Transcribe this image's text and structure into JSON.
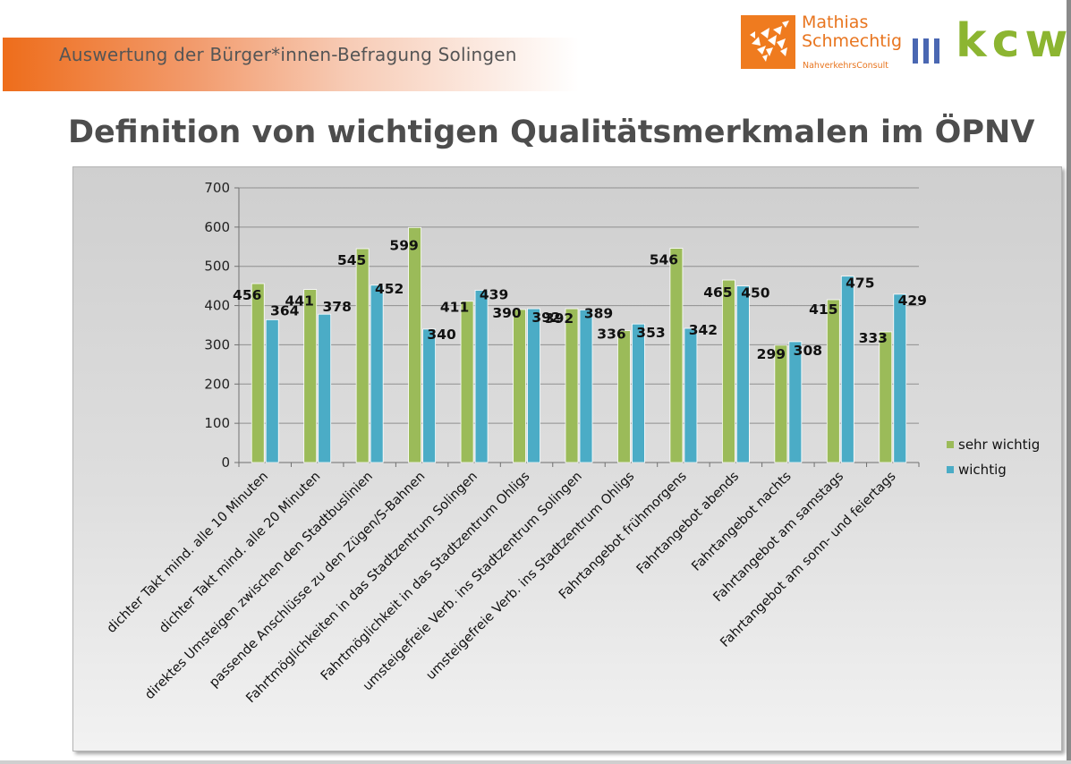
{
  "header": {
    "subtitle": "Auswertung der Bürger*innen-Befragung Solingen"
  },
  "logos": {
    "mathias_line1": "Mathias",
    "mathias_line2": "Schmechtig",
    "mathias_sub": "NahverkehrsConsult",
    "kcw": "kcw"
  },
  "page": {
    "title": "Definition von wichtigen Qualitätsmerkmalen im ÖPNV"
  },
  "colors": {
    "brand_orange": "#ee6d1b",
    "kcw_green": "#8cb531",
    "kcw_blue": "#4a67b2"
  },
  "chart_data": {
    "type": "bar",
    "title": "",
    "xlabel": "",
    "ylabel": "",
    "ylim": [
      0,
      700
    ],
    "yticks": [
      0,
      100,
      200,
      300,
      400,
      500,
      600,
      700
    ],
    "grid": true,
    "legend_position": "right",
    "categories": [
      "dichter Takt mind. alle 10 Minuten",
      "dichter Takt mind. alle 20 Minuten",
      "direktes Umsteigen zwischen den Stadtbuslinien",
      "passende Anschlüsse zu den Zügen/S-Bahnen",
      "Fahrtmöglichkeiten in das Stadtzentrum Solingen",
      "Fahrtmöglichkeit in das Stadtzentrum Ohligs",
      "umsteigefreie Verb. ins Stadtzentrum Solingen",
      "umsteigefreie Verb. ins Stadtzentrum Ohligs",
      "Fahrtangebot frühmorgens",
      "Fahrtangebot abends",
      "Fahrtangebot nachts",
      "Fahrtangebot am samstags",
      "Fahrtangebot am sonn- und feiertags"
    ],
    "series": [
      {
        "name": "sehr wichtig",
        "color": "#9bbb59",
        "values": [
          456,
          441,
          545,
          599,
          411,
          390,
          392,
          336,
          546,
          465,
          299,
          415,
          333
        ]
      },
      {
        "name": "wichtig",
        "color": "#4bacc6",
        "values": [
          364,
          378,
          452,
          340,
          439,
          392,
          389,
          353,
          342,
          450,
          308,
          475,
          429
        ]
      }
    ]
  }
}
